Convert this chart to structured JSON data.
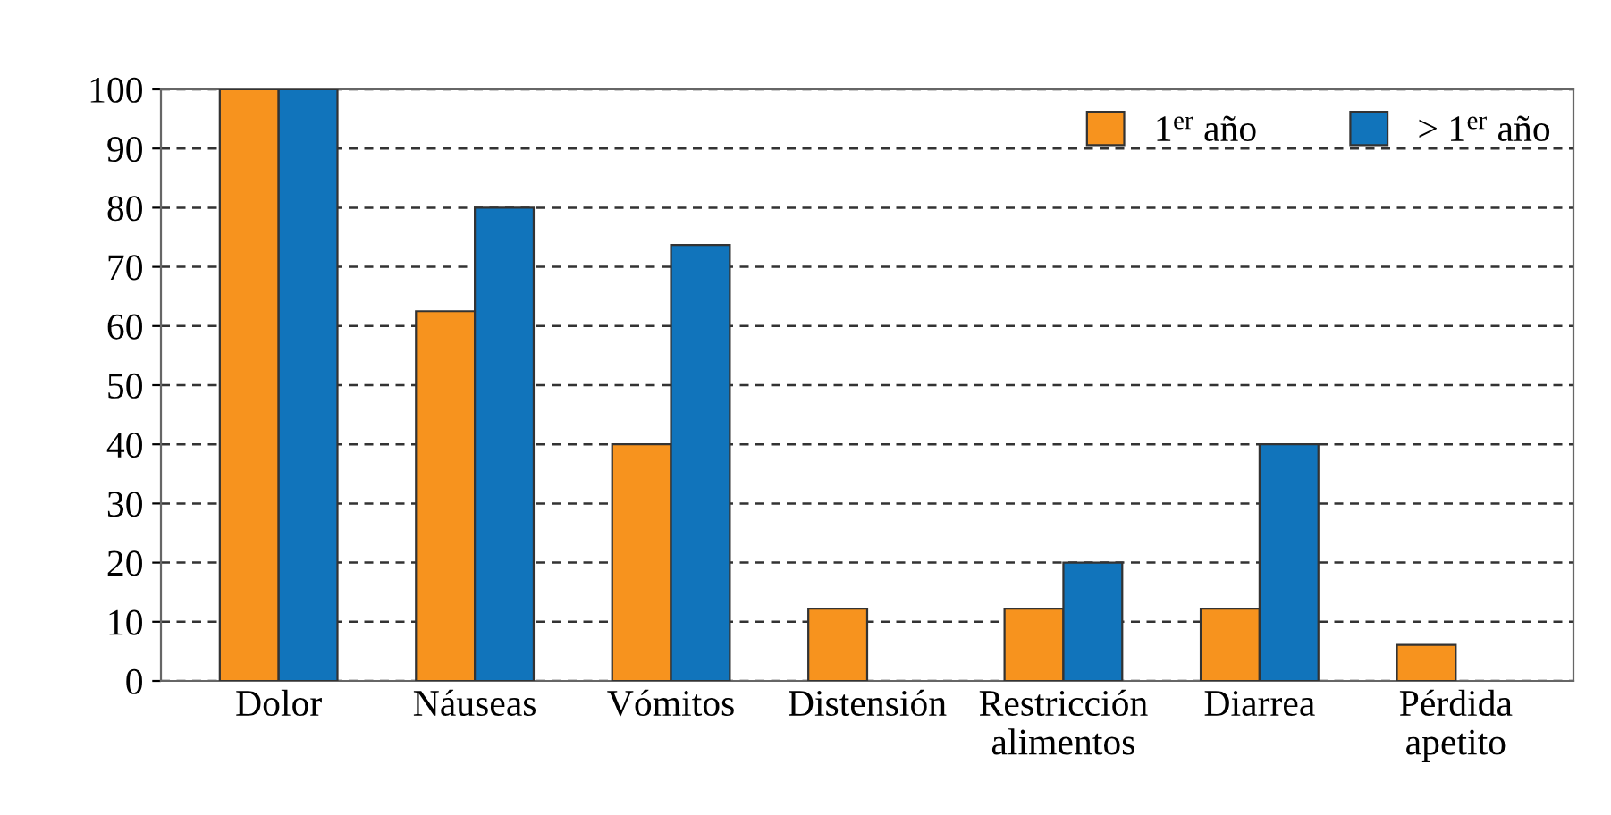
{
  "chart_data": {
    "type": "bar",
    "categories": [
      "Dolor",
      "Náuseas",
      "Vómitos",
      "Distensión",
      "Restricción\nalimentos",
      "Diarrea",
      "Pérdida\napetito"
    ],
    "series": [
      {
        "name": "1$^{er}$ año",
        "color": "#f7931e",
        "values": [
          100,
          62.5,
          40,
          12.2,
          12.2,
          12.2,
          6.1
        ]
      },
      {
        "name": "> 1$^{er}$ año",
        "color": "#1174bb",
        "values": [
          100,
          80,
          73.7,
          null,
          20,
          40,
          null
        ]
      }
    ],
    "ylim": [
      0,
      100
    ],
    "yticks": [
      0,
      10,
      20,
      30,
      40,
      50,
      60,
      70,
      80,
      90,
      100
    ],
    "grid": "y",
    "legend": "top right"
  }
}
